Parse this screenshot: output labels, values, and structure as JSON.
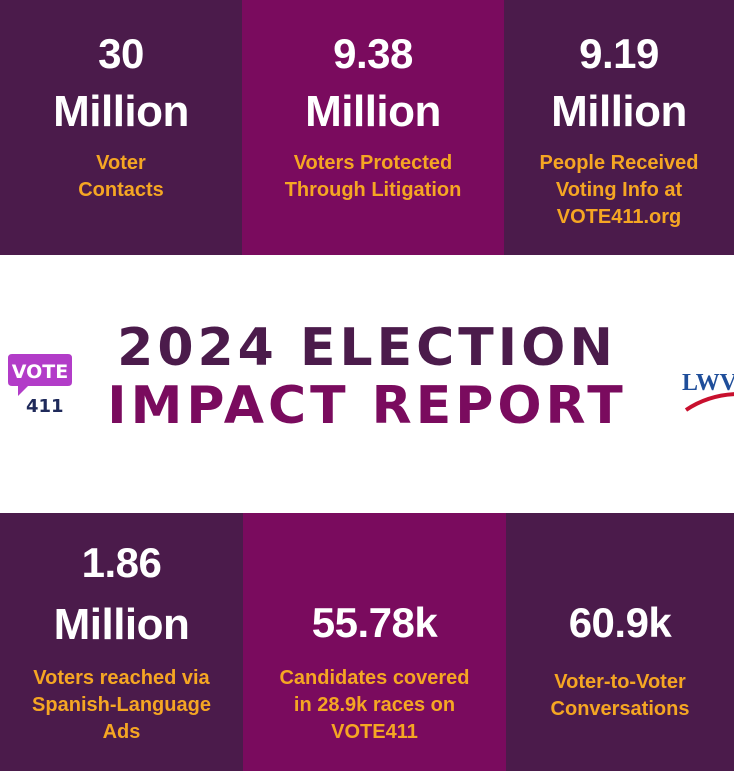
{
  "stats_top": [
    {
      "number": "30",
      "unit": "Million",
      "label": [
        "Voter",
        "Contacts"
      ]
    },
    {
      "number": "9.38",
      "unit": "Million",
      "label": [
        "Voters Protected",
        "Through Litigation"
      ]
    },
    {
      "number": "9.19",
      "unit": "Million",
      "label": [
        "People Received",
        "Voting Info at",
        "VOTE411.org"
      ]
    }
  ],
  "title": {
    "line1": "2024 ELECTION",
    "line2": "IMPACT REPORT"
  },
  "logos": {
    "vote_top": "VOTE",
    "vote_bottom": "411",
    "lwv": "LWV"
  },
  "stats_bottom": [
    {
      "number": "1.86",
      "unit": "Million",
      "label": [
        "Voters reached via",
        "Spanish-Language",
        "Ads"
      ]
    },
    {
      "number": "55.78k",
      "label": [
        "Candidates covered",
        "in 28.9k races on",
        "VOTE411"
      ]
    },
    {
      "number": "60.9k",
      "label": [
        "Voter-to-Voter",
        "Conversations"
      ]
    }
  ],
  "colors": {
    "dark_purple": "#4b1b4b",
    "magenta": "#7a0b5e",
    "gold": "#f5a623",
    "vote_purple": "#b23cc8",
    "lwv_blue": "#1f4e9a",
    "lwv_red": "#c8102e"
  }
}
